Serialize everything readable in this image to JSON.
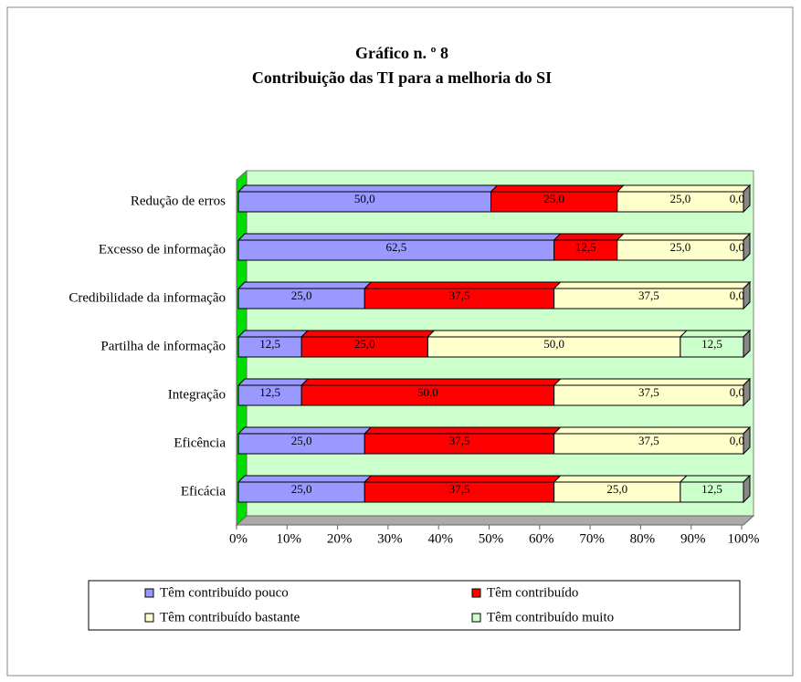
{
  "chart_data": {
    "type": "bar",
    "orientation": "horizontal",
    "stacked": true,
    "title": "Gráfico n. º 8",
    "subtitle": "Contribuição das TI para a melhoria do SI",
    "categories": [
      "Redução de erros",
      "Excesso de informação",
      "Credibilidade da informação",
      "Partilha de informação",
      "Integração",
      "Eficência",
      "Eficácia"
    ],
    "series": [
      {
        "name": "Têm contribuído pouco",
        "color": "#9999ff",
        "values": [
          50,
          62.5,
          25,
          12.5,
          12.5,
          25,
          25
        ],
        "value_labels": [
          "50,0",
          "62,5",
          "25,0",
          "12,5",
          "12,5",
          "25,0",
          "25,0"
        ]
      },
      {
        "name": "Têm contribuído",
        "color": "#ff0000",
        "values": [
          25,
          12.5,
          37.5,
          25,
          50,
          37.5,
          37.5
        ],
        "value_labels": [
          "25,0",
          "12,5",
          "37,5",
          "25,0",
          "50,0",
          "37,5",
          "37,5"
        ]
      },
      {
        "name": "Têm contribuído bastante",
        "color": "#ffffcc",
        "values": [
          25,
          25,
          37.5,
          50,
          37.5,
          37.5,
          25
        ],
        "value_labels": [
          "25,0",
          "25,0",
          "37,5",
          "50,0",
          "37,5",
          "37,5",
          "25,0"
        ]
      },
      {
        "name": "Têm contribuído muito",
        "color": "#ccffcc",
        "values": [
          0,
          0,
          0,
          12.5,
          0,
          0,
          12.5
        ],
        "value_labels": [
          "0,0",
          "0,0",
          "0,0",
          "12,5",
          "0,0",
          "0,0",
          "12,5"
        ]
      }
    ],
    "xlim": [
      0,
      100
    ],
    "xticks": [
      {
        "value": 0,
        "label": "0%"
      },
      {
        "value": 10,
        "label": "10%"
      },
      {
        "value": 20,
        "label": "20%"
      },
      {
        "value": 30,
        "label": "30%"
      },
      {
        "value": 40,
        "label": "40%"
      },
      {
        "value": 50,
        "label": "50%"
      },
      {
        "value": 60,
        "label": "60%"
      },
      {
        "value": 70,
        "label": "70%"
      },
      {
        "value": 80,
        "label": "80%"
      },
      {
        "value": 90,
        "label": "90%"
      },
      {
        "value": 100,
        "label": "100%"
      }
    ],
    "legend": "bottom"
  }
}
